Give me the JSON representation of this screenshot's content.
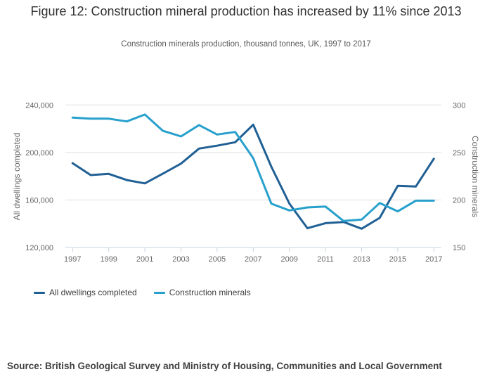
{
  "chart_data": {
    "type": "line",
    "title": "Figure 12: Construction mineral production has increased by 11% since 2013",
    "subtitle": "Construction minerals production, thousand tonnes, UK, 1997 to 2017",
    "x": [
      1997,
      1998,
      1999,
      2000,
      2001,
      2002,
      2003,
      2004,
      2005,
      2006,
      2007,
      2008,
      2009,
      2010,
      2011,
      2012,
      2013,
      2014,
      2015,
      2016,
      2017
    ],
    "x_tick_labels": [
      "1997",
      "1999",
      "2001",
      "2003",
      "2005",
      "2007",
      "2009",
      "2011",
      "2013",
      "2015",
      "2017"
    ],
    "xlabel": "",
    "ylabel_left": "All dwellings completed",
    "ylabel_right": "Construction minerals",
    "ylim_left": [
      120000,
      240000
    ],
    "ylim_right": [
      150,
      300
    ],
    "y_ticks_left": [
      {
        "value": 120000,
        "label": "120,000"
      },
      {
        "value": 160000,
        "label": "160,000"
      },
      {
        "value": 200000,
        "label": "200,000"
      },
      {
        "value": 240000,
        "label": "240,000"
      }
    ],
    "y_ticks_right": [
      {
        "value": 150,
        "label": "150"
      },
      {
        "value": 200,
        "label": "200"
      },
      {
        "value": 250,
        "label": "250"
      },
      {
        "value": 300,
        "label": "300"
      }
    ],
    "grid": true,
    "legend_position": "bottom-left",
    "series": [
      {
        "name": "All dwellings completed",
        "axis": "left",
        "color": "#206095",
        "values": [
          191000,
          181000,
          182000,
          176800,
          174000,
          182200,
          190600,
          203300,
          205700,
          208600,
          223400,
          188100,
          157000,
          136200,
          140500,
          141500,
          135800,
          144900,
          171900,
          171300,
          194800
        ]
      },
      {
        "name": "Construction minerals",
        "axis": "right",
        "color": "#27a0cc",
        "values": [
          286.7,
          285.6,
          285.6,
          282.7,
          289.9,
          272.8,
          266.9,
          278.8,
          268.9,
          271.6,
          244.0,
          196.2,
          189.0,
          192.2,
          193.1,
          177.9,
          179.4,
          196.8,
          188.0,
          199.3,
          199.3
        ]
      }
    ]
  },
  "source": "Source: British Geological Survey and Ministry of Housing, Communities and Local Government"
}
